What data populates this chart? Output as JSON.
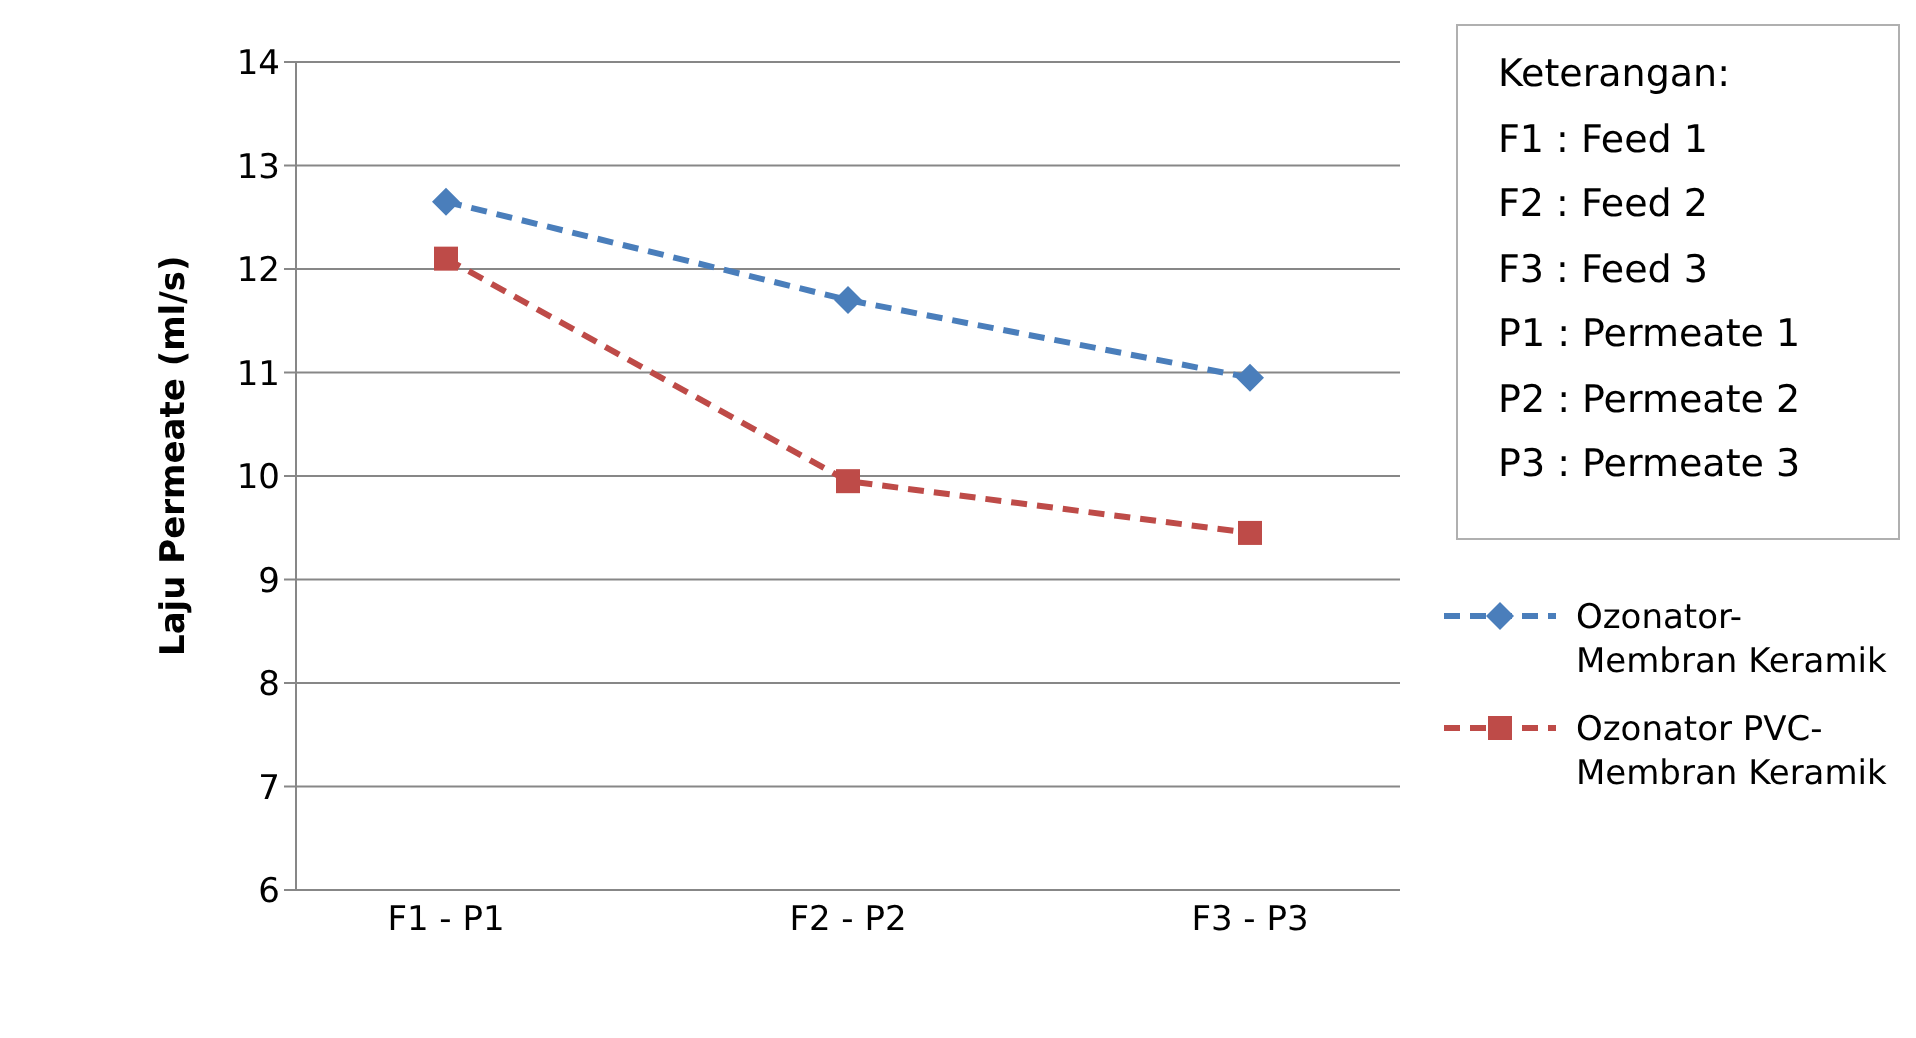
{
  "chart_data": {
    "type": "line",
    "ylabel": "Laju Permeate (ml/s)",
    "categories": [
      "F1 - P1",
      "F2 - P2",
      "F3 - P3"
    ],
    "series": [
      {
        "name": "Ozonator-Membran Keramik",
        "color": "#4a7ebb",
        "values": [
          12.65,
          11.7,
          10.95
        ],
        "marker": "diamond"
      },
      {
        "name": "Ozonator PVC-Membran Keramik",
        "color": "#be4b48",
        "values": [
          12.1,
          9.95,
          9.45
        ],
        "marker": "square"
      }
    ],
    "ylim": [
      6,
      14
    ],
    "yticks": [
      6,
      7,
      8,
      9,
      10,
      11,
      12,
      13,
      14
    ],
    "grid": "y",
    "legend": "right",
    "line_style": "dashed",
    "annotations": [
      "Keterangan:",
      "F1 : Feed 1",
      "F2 : Feed 2",
      "F3 : Feed 3",
      "P1 : Permeate 1",
      "P2 : Permeate 2",
      "P3 : Permeate 3"
    ]
  }
}
